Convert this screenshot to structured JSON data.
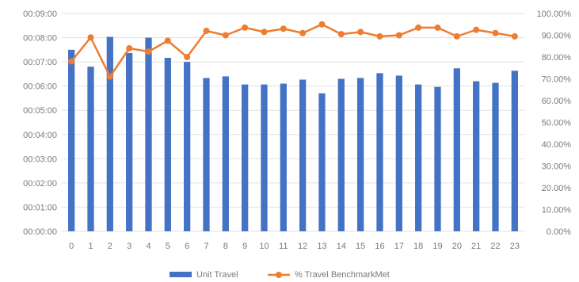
{
  "chart_data": {
    "type": "bar",
    "categories": [
      "0",
      "1",
      "2",
      "3",
      "4",
      "5",
      "6",
      "7",
      "8",
      "9",
      "10",
      "11",
      "12",
      "13",
      "14",
      "15",
      "16",
      "17",
      "18",
      "19",
      "20",
      "21",
      "22",
      "23"
    ],
    "series": [
      {
        "name": "Unit Travel",
        "type": "bar",
        "axis": "left",
        "values": [
          "00:07:30",
          "00:06:48",
          "00:08:02",
          "00:07:22",
          "00:08:00",
          "00:07:10",
          "00:07:00",
          "00:06:20",
          "00:06:24",
          "00:06:04",
          "00:06:04",
          "00:06:06",
          "00:06:16",
          "00:05:42",
          "00:06:18",
          "00:06:20",
          "00:06:32",
          "00:06:26",
          "00:06:04",
          "00:05:58",
          "00:06:44",
          "00:06:12",
          "00:06:08",
          "00:06:38"
        ],
        "color": "#4472c4"
      },
      {
        "name": "% Travel BenchmarkMet",
        "type": "line",
        "axis": "right",
        "values": [
          78.0,
          89.0,
          71.0,
          84.0,
          82.5,
          87.5,
          80.0,
          92.0,
          90.0,
          93.5,
          91.5,
          93.0,
          91.0,
          95.0,
          90.5,
          91.5,
          89.5,
          90.0,
          93.5,
          93.5,
          89.5,
          92.5,
          91.0,
          89.5
        ],
        "color": "#ed7d31"
      }
    ],
    "y_left_ticks": [
      "00:00:00",
      "00:01:00",
      "00:02:00",
      "00:03:00",
      "00:04:00",
      "00:05:00",
      "00:06:00",
      "00:07:00",
      "00:08:00",
      "00:09:00"
    ],
    "y_right_ticks": [
      "0.00%",
      "10.00%",
      "20.00%",
      "30.00%",
      "40.00%",
      "50.00%",
      "60.00%",
      "70.00%",
      "80.00%",
      "90.00%",
      "100.00%"
    ],
    "ylim_left": [
      "00:00:00",
      "00:09:00"
    ],
    "ylim_right": [
      0,
      100
    ],
    "grid": true,
    "legend": "bottom"
  }
}
